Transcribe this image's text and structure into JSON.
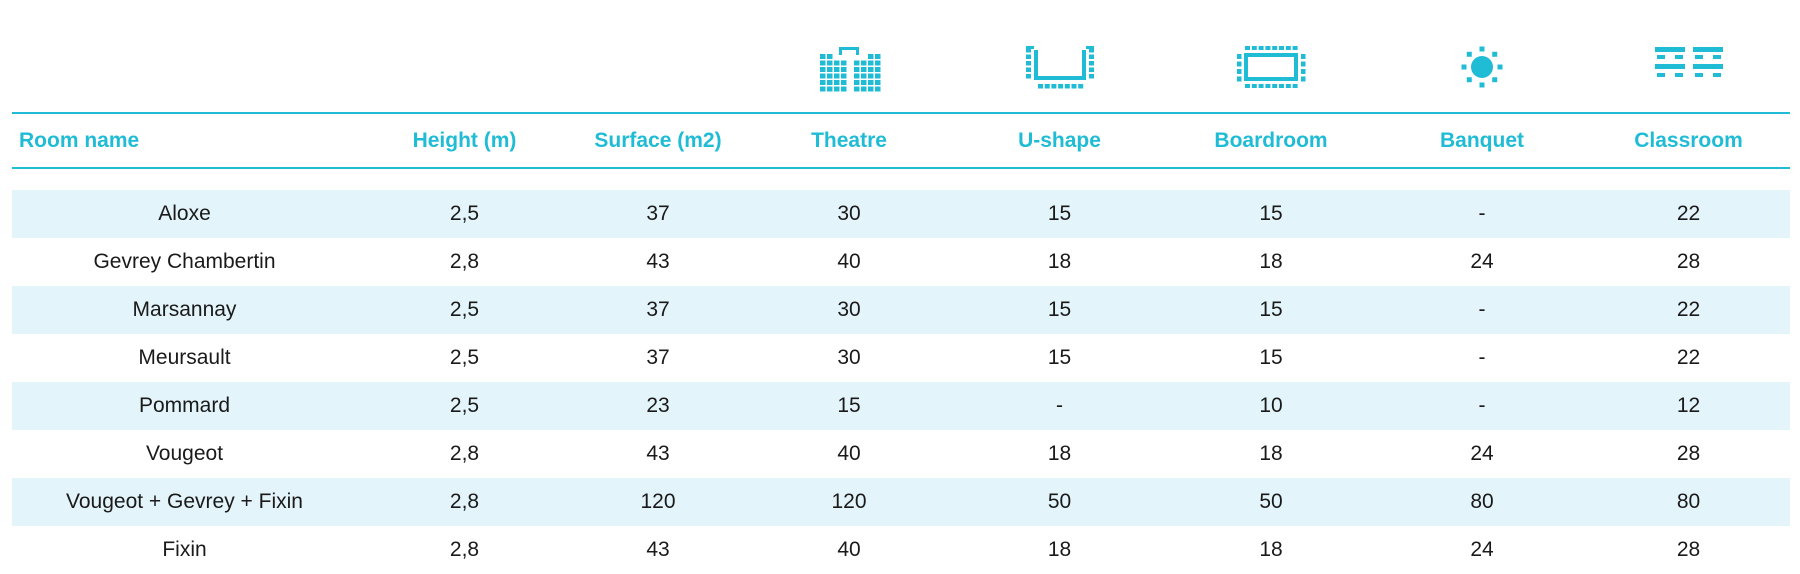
{
  "colors": {
    "accent": "#20bcd6",
    "row_shade": "#e3f4fa",
    "text": "#1a1a1a"
  },
  "columns": [
    {
      "key": "room",
      "label": "Room name",
      "icon": ""
    },
    {
      "key": "height",
      "label": "Height (m)",
      "icon": ""
    },
    {
      "key": "surface",
      "label": "Surface (m2)",
      "icon": ""
    },
    {
      "key": "theatre",
      "label": "Theatre",
      "icon": "theatre-layout-icon"
    },
    {
      "key": "ushape",
      "label": "U-shape",
      "icon": "u-shape-layout-icon"
    },
    {
      "key": "boardroom",
      "label": "Boardroom",
      "icon": "boardroom-layout-icon"
    },
    {
      "key": "banquet",
      "label": "Banquet",
      "icon": "banquet-layout-icon"
    },
    {
      "key": "classroom",
      "label": "Classroom",
      "icon": "classroom-layout-icon"
    }
  ],
  "rows": [
    [
      "Aloxe",
      "2,5",
      "37",
      "30",
      "15",
      "15",
      "-",
      "22"
    ],
    [
      "Gevrey Chambertin",
      "2,8",
      "43",
      "40",
      "18",
      "18",
      "24",
      "28"
    ],
    [
      "Marsannay",
      "2,5",
      "37",
      "30",
      "15",
      "15",
      "-",
      "22"
    ],
    [
      "Meursault",
      "2,5",
      "37",
      "30",
      "15",
      "15",
      "-",
      "22"
    ],
    [
      "Pommard",
      "2,5",
      "23",
      "15",
      "-",
      "10",
      "-",
      "12"
    ],
    [
      "Vougeot",
      "2,8",
      "43",
      "40",
      "18",
      "18",
      "24",
      "28"
    ],
    [
      "Vougeot + Gevrey + Fixin",
      "2,8",
      "120",
      "120",
      "50",
      "50",
      "80",
      "80"
    ],
    [
      "Fixin",
      "2,8",
      "43",
      "40",
      "18",
      "18",
      "24",
      "28"
    ]
  ]
}
